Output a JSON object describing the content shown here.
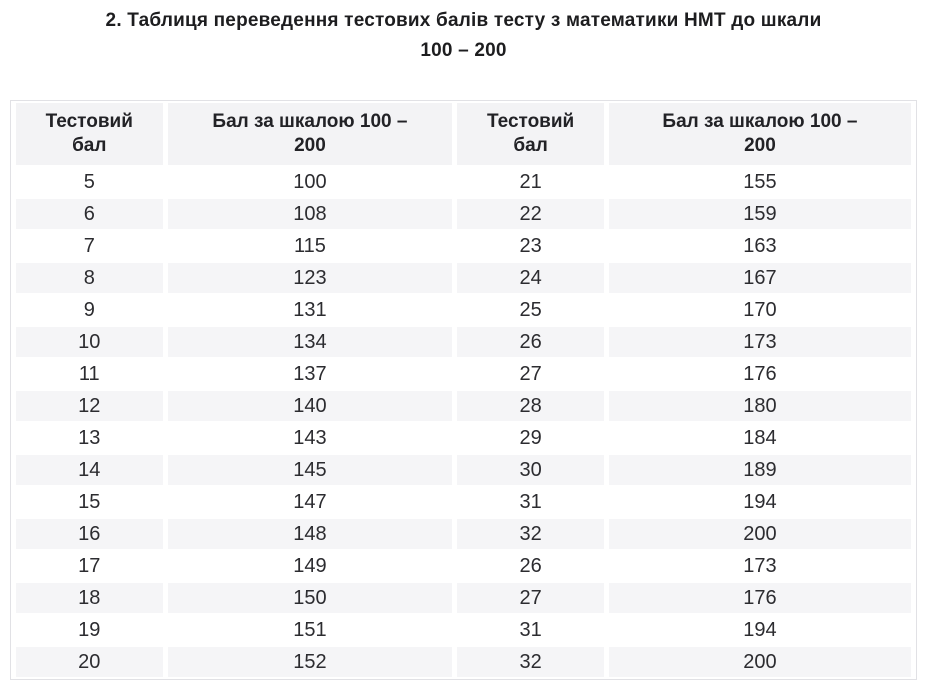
{
  "title": {
    "line1": "2. Таблиця переведення тестових балів тесту з математики НМТ до шкали",
    "line2": "100 – 200"
  },
  "table": {
    "headers": [
      {
        "line1": "Тестовий",
        "line2": "бал"
      },
      {
        "line1": "Бал за шкалою 100 –",
        "line2": "200"
      },
      {
        "line1": "Тестовий",
        "line2": "бал"
      },
      {
        "line1": "Бал за шкалою 100 –",
        "line2": "200"
      }
    ],
    "rows": [
      [
        "5",
        "100",
        "21",
        "155"
      ],
      [
        "6",
        "108",
        "22",
        "159"
      ],
      [
        "7",
        "115",
        "23",
        "163"
      ],
      [
        "8",
        "123",
        "24",
        "167"
      ],
      [
        "9",
        "131",
        "25",
        "170"
      ],
      [
        "10",
        "134",
        "26",
        "173"
      ],
      [
        "11",
        "137",
        "27",
        "176"
      ],
      [
        "12",
        "140",
        "28",
        "180"
      ],
      [
        "13",
        "143",
        "29",
        "184"
      ],
      [
        "14",
        "145",
        "30",
        "189"
      ],
      [
        "15",
        "147",
        "31",
        "194"
      ],
      [
        "16",
        "148",
        "32",
        "200"
      ],
      [
        "17",
        "149",
        "26",
        "173"
      ],
      [
        "18",
        "150",
        "27",
        "176"
      ],
      [
        "19",
        "151",
        "31",
        "194"
      ],
      [
        "20",
        "152",
        "32",
        "200"
      ]
    ]
  },
  "colors": {
    "header_background": "#f3f3f5",
    "stripe_background": "#f5f5f7",
    "table_border": "#e1e1e5",
    "text": "#2c2c30"
  }
}
